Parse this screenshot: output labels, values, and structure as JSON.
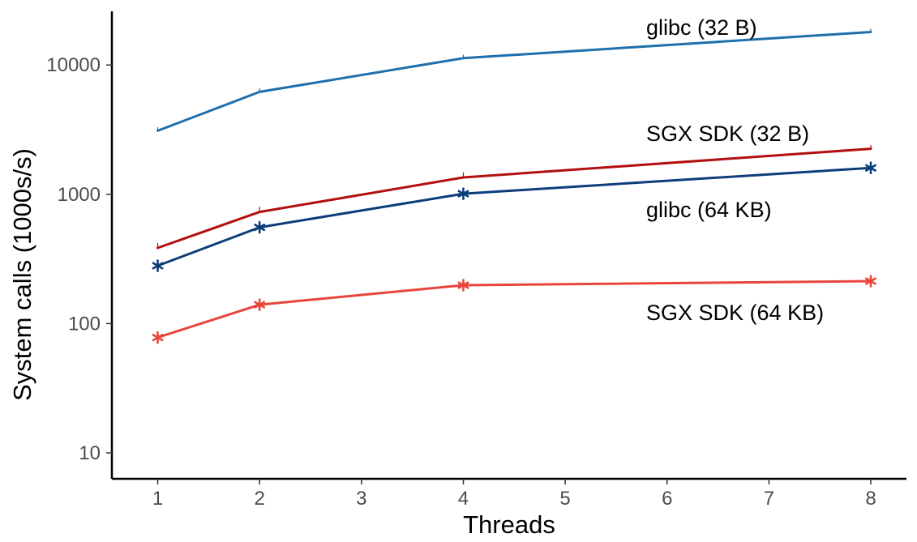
{
  "chart_data": {
    "type": "line",
    "xlabel": "Threads",
    "ylabel": "System calls (1000s/s)",
    "x_ticks": [
      1,
      2,
      3,
      4,
      5,
      6,
      7,
      8
    ],
    "xlim": [
      0.55,
      8.35
    ],
    "y_scale": "log",
    "y_ticks": [
      10,
      100,
      1000,
      10000
    ],
    "ylim": [
      6.3,
      26000
    ],
    "grid": false,
    "legend": "none (direct labels)",
    "series": [
      {
        "name": "glibc (32 B)",
        "color": "#1f6fad",
        "marker": "none",
        "x": [
          1,
          2,
          4,
          8
        ],
        "values": [
          3100,
          6200,
          11300,
          18000
        ],
        "error_upper": [
          3300,
          6600,
          12000,
          19000
        ]
      },
      {
        "name": "SGX SDK (32 B)",
        "color": "#b30f0f",
        "marker": "none",
        "x": [
          1,
          2,
          4,
          8
        ],
        "values": [
          385,
          730,
          1350,
          2250
        ],
        "error_upper": [
          420,
          800,
          1480,
          2400
        ]
      },
      {
        "name": "glibc (64 KB)",
        "color": "#0d3d7a",
        "marker": "asterisk",
        "x": [
          1,
          2,
          4,
          8
        ],
        "values": [
          280,
          555,
          1010,
          1600
        ],
        "error_upper": [
          290,
          575,
          1040,
          1640
        ]
      },
      {
        "name": "SGX SDK (64 KB)",
        "color": "#e8453c",
        "marker": "asterisk",
        "x": [
          1,
          2,
          4,
          8
        ],
        "values": [
          78,
          140,
          198,
          213
        ],
        "error_upper": [
          80,
          143,
          202,
          217
        ]
      }
    ]
  }
}
